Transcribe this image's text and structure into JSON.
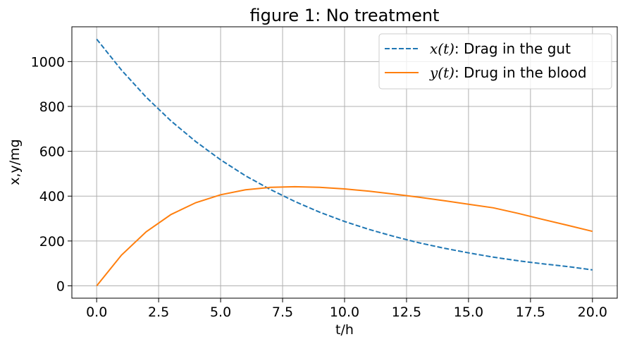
{
  "chart_data": {
    "type": "line",
    "title": "figure 1: No treatment",
    "xlabel": "t/h",
    "ylabel": "x,y/mg",
    "xlim": [
      -1.0,
      21.0
    ],
    "ylim": [
      -55,
      1155
    ],
    "xticks": [
      0.0,
      2.5,
      5.0,
      7.5,
      10.0,
      12.5,
      15.0,
      17.5,
      20.0
    ],
    "xtick_labels": [
      "0.0",
      "2.5",
      "5.0",
      "7.5",
      "10.0",
      "12.5",
      "15.0",
      "17.5",
      "20.0"
    ],
    "yticks": [
      0,
      200,
      400,
      600,
      800,
      1000
    ],
    "ytick_labels": [
      "0",
      "200",
      "400",
      "600",
      "800",
      "1000"
    ],
    "grid": true,
    "legend_position": "top-right",
    "series": [
      {
        "name": "x(t): Drag in the gut",
        "legend_math": "x(t)",
        "legend_text": ": Drag in the gut",
        "color": "#1f77b4",
        "style": "dashed",
        "x": [
          0,
          1,
          2,
          3,
          4,
          5,
          6,
          7,
          8,
          9,
          10,
          11,
          12,
          13,
          14,
          15,
          16,
          17,
          18,
          19,
          20
        ],
        "y": [
          1100,
          962,
          841,
          735,
          643,
          562,
          491,
          430,
          376,
          328,
          287,
          251,
          220,
          192,
          168,
          147,
          128,
          112,
          98,
          86,
          71
        ]
      },
      {
        "name": "y(t): Drug in the blood",
        "legend_math": "y(t)",
        "legend_text": ": Drug in the blood",
        "color": "#ff7f0e",
        "style": "solid",
        "x": [
          0,
          1,
          2,
          3,
          4,
          5,
          6,
          7,
          8,
          9,
          10,
          11,
          12,
          13,
          14,
          15,
          16,
          17,
          18,
          19,
          20
        ],
        "y": [
          0,
          137,
          241,
          318,
          371,
          406,
          428,
          439,
          442,
          439,
          432,
          422,
          409,
          395,
          380,
          364,
          348,
          323,
          296,
          270,
          243
        ]
      }
    ]
  }
}
